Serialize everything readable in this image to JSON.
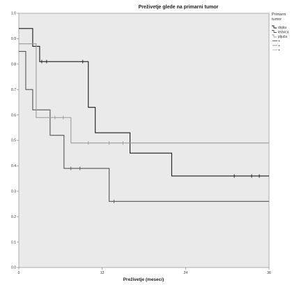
{
  "chart_data": {
    "type": "line",
    "title": "Preživetje glede na primarni tumor",
    "xlabel": "Preživetje (meseci)",
    "ylabel": "",
    "xlim": [
      0,
      36
    ],
    "ylim": [
      0,
      1
    ],
    "xticks": [
      0,
      12,
      24,
      36
    ],
    "yticks": [
      0.0,
      0.1,
      0.2,
      0.3,
      0.4,
      0.5,
      0.6,
      0.7,
      0.8,
      0.9,
      1.0
    ],
    "ytick_labels": [
      "0.0",
      "0.1",
      "0.2",
      "0.3",
      "0.4",
      "0.5",
      "0.6",
      "0.7",
      "0.8",
      "0.9",
      "1.0"
    ],
    "grid": false,
    "background": "#eaeaea",
    "legend": {
      "title": "Primarni tumor",
      "placement": "right",
      "items": [
        {
          "label": "dojka",
          "kind": "line",
          "color": "#111111"
        },
        {
          "label": "ledvica",
          "kind": "line",
          "color": "#555555"
        },
        {
          "label": "pljuča",
          "kind": "line",
          "color": "#999999"
        },
        {
          "label": "+",
          "kind": "censor",
          "color": "#111111"
        },
        {
          "label": "+",
          "kind": "censor",
          "color": "#555555"
        },
        {
          "label": "+",
          "kind": "censor",
          "color": "#999999"
        }
      ]
    },
    "series": [
      {
        "name": "dojka",
        "color": "#1a1a1a",
        "steps": [
          [
            0,
            0.94
          ],
          [
            2,
            0.87
          ],
          [
            3,
            0.81
          ],
          [
            10,
            0.63
          ],
          [
            11,
            0.53
          ],
          [
            16,
            0.45
          ],
          [
            22,
            0.36
          ],
          [
            36,
            0.36
          ]
        ],
        "censored": [
          [
            3.3,
            0.81
          ],
          [
            4,
            0.81
          ],
          [
            9.2,
            0.81
          ],
          [
            31,
            0.36
          ],
          [
            33.5,
            0.36
          ],
          [
            34.6,
            0.36
          ]
        ]
      },
      {
        "name": "ledvica",
        "color": "#555555",
        "steps": [
          [
            0,
            0.85
          ],
          [
            1,
            0.7
          ],
          [
            2,
            0.62
          ],
          [
            4.5,
            0.52
          ],
          [
            6.5,
            0.39
          ],
          [
            13,
            0.26
          ],
          [
            36,
            0.26
          ]
        ],
        "censored": [
          [
            7.5,
            0.39
          ],
          [
            8.8,
            0.39
          ],
          [
            13.7,
            0.26
          ]
        ]
      },
      {
        "name": "pljuča",
        "color": "#9a9a9a",
        "steps": [
          [
            0,
            0.88
          ],
          [
            2.5,
            0.59
          ],
          [
            6,
            0.59
          ],
          [
            7.5,
            0.49
          ],
          [
            36,
            0.49
          ]
        ],
        "censored": [
          [
            5.2,
            0.59
          ],
          [
            6.4,
            0.59
          ],
          [
            10,
            0.49
          ],
          [
            13,
            0.49
          ],
          [
            15,
            0.49
          ]
        ]
      }
    ]
  }
}
